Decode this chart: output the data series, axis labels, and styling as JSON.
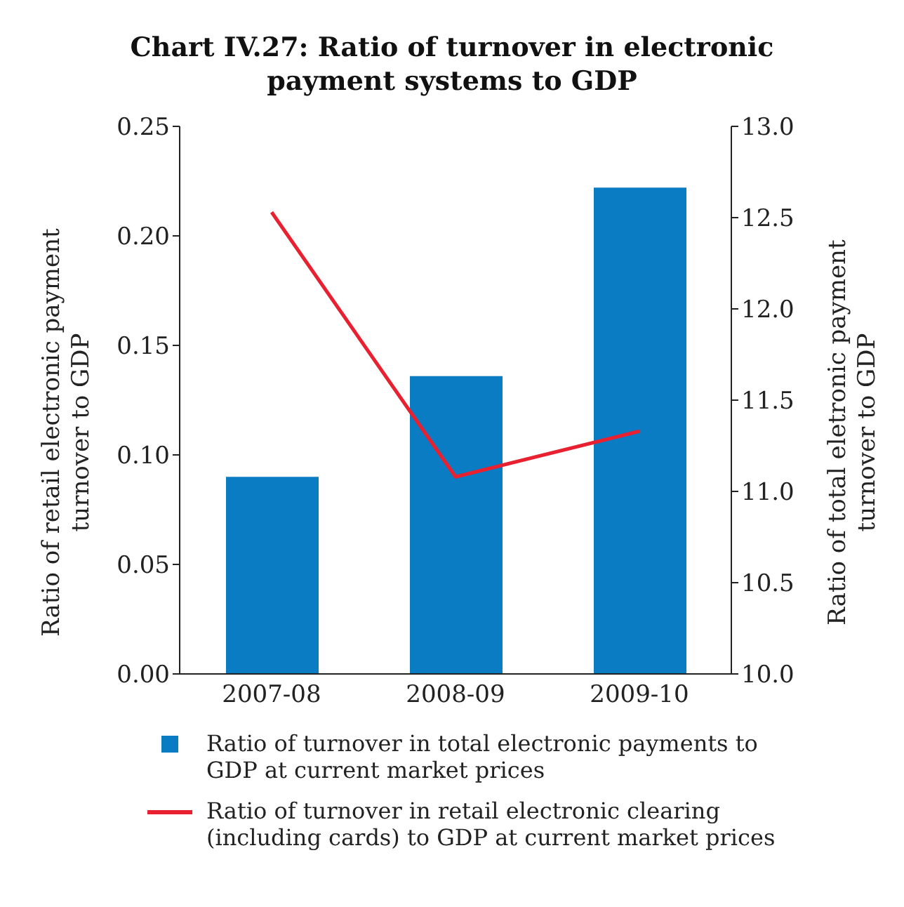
{
  "chart_data": {
    "type": "bar",
    "title": "Chart IV.27: Ratio of turnover in electronic payment systems to GDP",
    "ylabel": "Ratio of retail electronic payment turnover to GDP",
    "y2label": "Ratio of total eletronic payment turnover to GDP",
    "categories": [
      "2007-08",
      "2008-09",
      "2009-10"
    ],
    "series": [
      {
        "name": "Ratio of turnover in total electronic payments to GDP at current market prices",
        "color": "#0a7cc4",
        "values": [
          0.09,
          0.136,
          0.222
        ]
      },
      {
        "name": "Ratio of turnover in retail electronic clearing (including cards) to GDP at current market prices",
        "type": "line",
        "axis": "y2",
        "color": "#e8202f",
        "values": [
          12.53,
          11.08,
          11.33
        ]
      }
    ],
    "ylim": [
      0,
      0.25
    ],
    "yticks": [
      {
        "value": 0,
        "label": "0.00"
      },
      {
        "value": 0.05,
        "label": "0.05"
      },
      {
        "value": 0.1,
        "label": "0.10"
      },
      {
        "value": 0.15,
        "label": "0.15"
      },
      {
        "value": 0.2,
        "label": "0.20"
      },
      {
        "value": 0.25,
        "label": "0.25"
      }
    ],
    "y2lim": [
      10,
      13
    ],
    "y2ticks": [
      {
        "value": 10,
        "label": "10.0"
      },
      {
        "value": 10.5,
        "label": "10.5"
      },
      {
        "value": 11,
        "label": "11.0"
      },
      {
        "value": 11.5,
        "label": "11.5"
      },
      {
        "value": 12,
        "label": "12.0"
      },
      {
        "value": 12.5,
        "label": "12.5"
      },
      {
        "value": 13,
        "label": "13.0"
      }
    ],
    "legend": "bottom",
    "marker": "none"
  }
}
